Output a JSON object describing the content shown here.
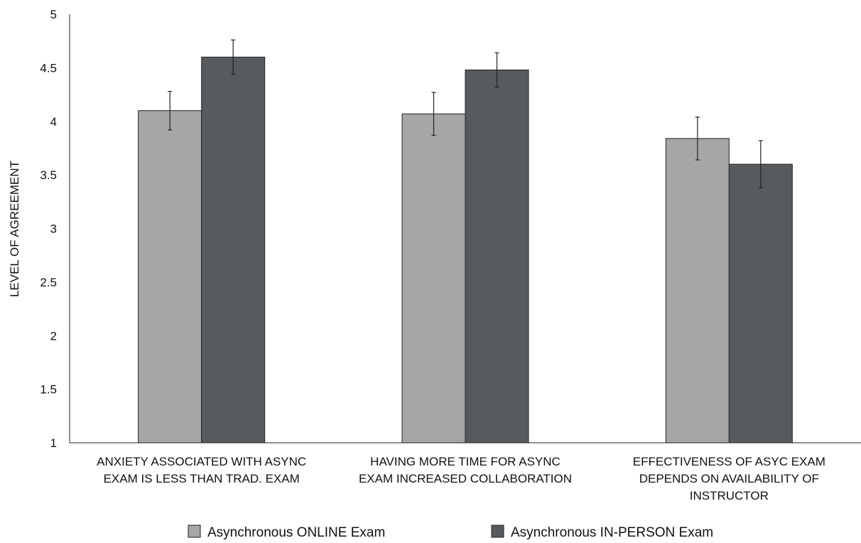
{
  "chart_data": {
    "type": "bar",
    "title": "",
    "xlabel": "",
    "ylabel": "LEVEL OF AGREEMENT",
    "ylim": [
      1,
      5
    ],
    "yticks": [
      "1",
      "1.5",
      "2",
      "2.5",
      "3",
      "3.5",
      "4",
      "4.5",
      "5"
    ],
    "grid": false,
    "legend_position": "bottom",
    "categories": [
      [
        "ANXIETY ASSOCIATED WITH ASYNC",
        "EXAM IS LESS THAN TRAD. EXAM"
      ],
      [
        "HAVING MORE TIME FOR ASYNC",
        "EXAM INCREASED COLLABORATION"
      ],
      [
        "EFFECTIVENESS OF ASYC EXAM",
        "DEPENDS ON AVAILABILITY OF",
        "INSTRUCTOR"
      ]
    ],
    "series": [
      {
        "name": "Asynchronous ONLINE Exam",
        "color": "#a4a6a7",
        "values": [
          4.1,
          4.07,
          3.84
        ],
        "error": [
          0.18,
          0.2,
          0.2
        ]
      },
      {
        "name": "Asynchronous IN-PERSON Exam",
        "color": "#585b5d",
        "values": [
          4.6,
          4.48,
          3.6
        ],
        "error": [
          0.16,
          0.16,
          0.22
        ]
      }
    ]
  }
}
